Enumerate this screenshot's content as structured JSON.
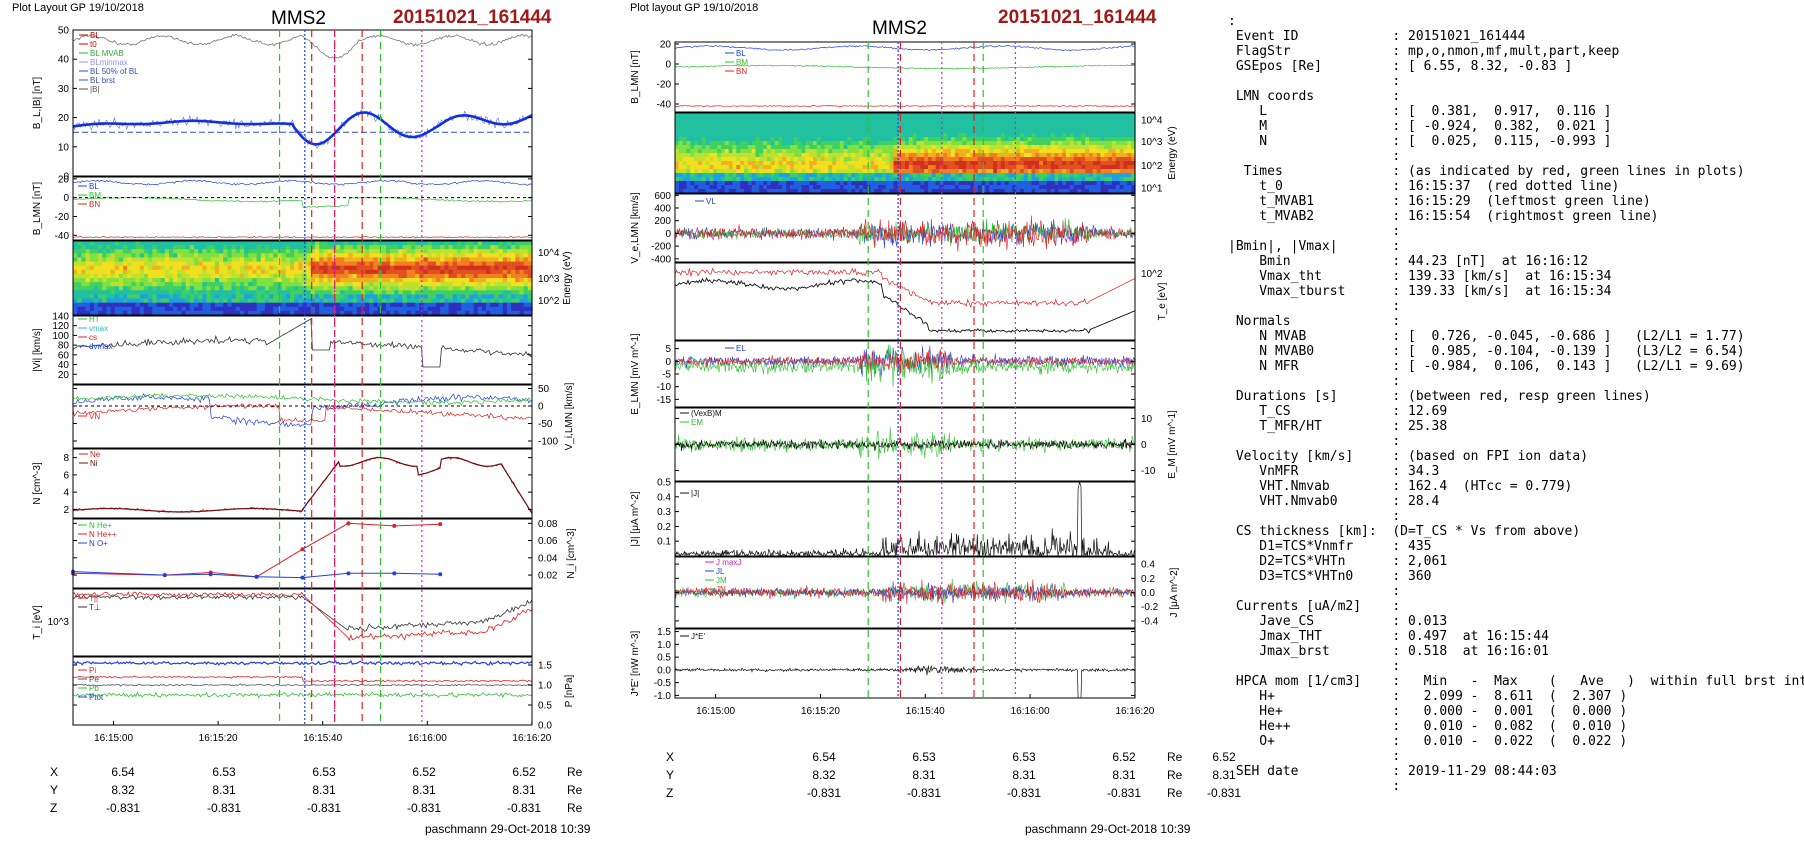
{
  "left": {
    "header": "Plot Layout GP 19/10/2018",
    "spacecraft": "MMS2",
    "event": "20151021_161444",
    "footer": "paschmann 29-Oct-2018 10:39",
    "time_ticks": [
      "16:15:00",
      "16:15:20",
      "16:15:40",
      "16:16:00",
      "16:16:20"
    ]
  },
  "middle": {
    "header": "Plot layout GP 19/10/2018",
    "spacecraft": "MMS2",
    "event": "20151021_161444",
    "footer": "paschmann 29-Oct-2018 10:39",
    "time_ticks": [
      "16:15:00",
      "16:15:20",
      "16:15:40",
      "16:16:00",
      "16:16:20"
    ]
  },
  "position_table": {
    "rows": [
      {
        "label": "X",
        "values": [
          "6.54",
          "6.53",
          "6.53",
          "6.52",
          "6.52"
        ],
        "unit": "Re"
      },
      {
        "label": "Y",
        "values": [
          "8.32",
          "8.31",
          "8.31",
          "8.31",
          "8.31"
        ],
        "unit": "Re"
      },
      {
        "label": "Z",
        "values": [
          "-0.831",
          "-0.831",
          "-0.831",
          "-0.831",
          "-0.831"
        ],
        "unit": "Re"
      }
    ]
  },
  "info_lines": [
    ":",
    " Event ID            : 20151021_161444",
    " FlagStr             : mp,o,nmon,mf,mult,part,keep",
    " GSEpos [Re]         : [ 6.55, 8.32, -0.83 ]",
    "                     :",
    " LMN coords          :",
    "    L                : [  0.381,  0.917,  0.116 ]",
    "    M                : [ -0.924,  0.382,  0.021 ]",
    "    N                : [  0.025,  0.115, -0.993 ]",
    "                     :",
    "  Times              : (as indicated by red, green lines in plots)",
    "    t_0              : 16:15:37  (red dotted line)",
    "    t_MVAB1          : 16:15:29  (leftmost green line)",
    "    t_MVAB2          : 16:15:54  (rightmost green line)",
    "                     :",
    "|Bmin|, |Vmax|       :",
    "    Bmin             : 44.23 [nT]  at 16:16:12",
    "    Vmax_tht         : 139.33 [km/s]  at 16:15:34",
    "    Vmax_tburst      : 139.33 [km/s]  at 16:15:34",
    "                     :",
    " Normals             :",
    "    N MVAB           : [  0.726, -0.045, -0.686 ]   (L2/L1 = 1.77)",
    "    N MVAB0          : [  0.985, -0.104, -0.139 ]   (L3/L2 = 6.54)",
    "    N MFR            : [ -0.984,  0.106,  0.143 ]   (L2/L1 = 9.69)",
    "                     :",
    " Durations [s]       : (between red, resp green lines)",
    "    T_CS             : 12.69",
    "    T_MFR/HT         : 25.38",
    "                     :",
    " Velocity [km/s]     : (based on FPI ion data)",
    "    VnMFR            : 34.3",
    "    VHT.Nmvab        : 162.4  (HTcc = 0.779)",
    "    VHT.Nmvab0       : 28.4",
    "                     :",
    " CS thickness [km]:  (D=T_CS * Vs from above)",
    "    D1=TCS*Vnmfr     : 435",
    "    D2=TCS*VHTn      : 2,061",
    "    D3=TCS*VHTn0     : 360",
    "                     :",
    " Currents [uA/m2]    :",
    "    Jave_CS          : 0.013",
    "    Jmax_THT         : 0.497  at 16:15:44",
    "    Jmax_brst        : 0.518  at 16:16:01",
    "                     :",
    " HPCA mom [1/cm3]    :   Min   -  Max    (   Ave   )  within full brst int",
    "    H+               :   2.099 -  8.611  (  2.307 )",
    "    He+              :   0.000 -  0.001  (  0.000 )",
    "    He++             :   0.010 -  0.082  (  0.010 )",
    "    O+               :   0.010 -  0.022  (  0.022 )",
    "                     :",
    " SEH date            : 2019-11-29 08:44:03",
    "                     :"
  ],
  "chart_data": [
    {
      "type": "line",
      "figure": "left",
      "panels": [
        {
          "id": "B",
          "ylabel": "B_L,|B| [nT]",
          "ylim": [
            0,
            50
          ],
          "ticks": [
            "50",
            "40",
            "30",
            "20",
            "10",
            "0"
          ],
          "legend": [
            "Bl_cs",
            "t0",
            "BL MVAB",
            "BLminmax",
            "BL 50% of BL",
            "BL brst",
            "|B|"
          ]
        },
        {
          "id": "BLMN",
          "ylabel": "B_LMN [nT]",
          "ylim": [
            -45,
            22
          ],
          "ticks": [
            "20",
            "0",
            "-20",
            "-40"
          ],
          "legend": [
            "BL",
            "BM",
            "BN"
          ]
        },
        {
          "id": "spec",
          "ylabel": "Energy (eV)",
          "ticks": [
            "10^4",
            "10^3",
            "10^2"
          ]
        },
        {
          "id": "Vi",
          "ylabel": "|Vi| [km/s]",
          "ylim": [
            0,
            140
          ],
          "ticks": [
            "140",
            "120",
            "100",
            "80",
            "60",
            "40",
            "20"
          ],
          "legend": [
            "HT",
            "vmax",
            "cs",
            "dvmax"
          ]
        },
        {
          "id": "ViLMN",
          "ylabel": "V_i,LMN [km/s]",
          "ylim": [
            -120,
            60
          ],
          "ticks": [
            "50",
            "0",
            "-50",
            "-100"
          ],
          "legend": [
            "VN"
          ]
        },
        {
          "id": "N",
          "ylabel": "N [cm^-3]",
          "ylim": [
            1,
            9
          ],
          "ticks": [
            "8",
            "6",
            "4",
            "2"
          ],
          "legend": [
            "Ne",
            "Ni"
          ]
        },
        {
          "id": "Nhpca",
          "ylabel": "N_i [cm^-3]",
          "ylim": [
            0.005,
            0.085
          ],
          "ticks": [
            "0.08",
            "0.06",
            "0.04",
            "0.02"
          ],
          "legend": [
            "N He+",
            "N He++",
            "N O+"
          ]
        },
        {
          "id": "T",
          "ylabel": "T_i [eV]",
          "ticks": [
            "10^3"
          ],
          "legend": [
            "T||",
            "T⊥"
          ]
        },
        {
          "id": "P",
          "ylabel": "P [nPa]",
          "ylim": [
            0,
            1.7
          ],
          "ticks": [
            "1.5",
            "1.0",
            "0.5",
            "0.0"
          ],
          "legend": [
            "Pi",
            "Pe",
            "Pb",
            "Ptot"
          ]
        }
      ],
      "xlabel": "",
      "markers": {
        "t_MVAB1": "16:15:29",
        "t_0": "16:15:37",
        "t_MVAB2": "16:15:54"
      }
    },
    {
      "type": "line",
      "figure": "middle",
      "panels": [
        {
          "id": "BLMN",
          "ylabel": "B_LMN [nT]",
          "ylim": [
            -48,
            22
          ],
          "ticks": [
            "20",
            "0",
            "-20",
            "-40"
          ],
          "legend": [
            "BL",
            "BM",
            "BN"
          ]
        },
        {
          "id": "espec",
          "ylabel": "Energy (eV)",
          "ticks": [
            "10^4",
            "10^3",
            "10^2",
            "10^1"
          ]
        },
        {
          "id": "Ve",
          "ylabel": "V_e,LMN [km/s]",
          "ylim": [
            -450,
            620
          ],
          "ticks": [
            "600",
            "400",
            "200",
            "0",
            "-200",
            "-400"
          ],
          "legend": [
            "VL"
          ]
        },
        {
          "id": "Te",
          "ylabel": "T_e [eV]",
          "ticks": [
            "10^2"
          ]
        },
        {
          "id": "E",
          "ylabel": "E_LMN [mV m^-1]",
          "ylim": [
            -18,
            8
          ],
          "ticks": [
            "5",
            "0",
            "-5",
            "-10",
            "-15"
          ],
          "legend": [
            "EL"
          ]
        },
        {
          "id": "EM",
          "ylabel": "E_M [mV m^-1]",
          "ylim": [
            -14,
            14
          ],
          "ticks": [
            "10",
            "0",
            "-10"
          ],
          "legend": [
            "(VexB)M",
            "EM"
          ]
        },
        {
          "id": "J",
          "ylabel": "|J| [μA m^-2]",
          "ylim": [
            0,
            0.5
          ],
          "ticks": [
            "0.5",
            "0.4",
            "0.3",
            "0.2",
            "0.1"
          ],
          "legend": [
            "|J|"
          ]
        },
        {
          "id": "JLMN",
          "ylabel": "J [μA m^-2]",
          "ylim": [
            -0.5,
            0.5
          ],
          "ticks": [
            "0.4",
            "0.2",
            "0.0",
            "-0.2",
            "-0.4"
          ],
          "legend": [
            "J maxJ",
            "JL",
            "JM",
            "JN"
          ]
        },
        {
          "id": "JE",
          "ylabel": "J*E' [nW m^-3]",
          "ylim": [
            -1.1,
            1.6
          ],
          "ticks": [
            "1.5",
            "1.0",
            "0.5",
            "0.0",
            "-0.5",
            "-1.0"
          ],
          "legend": [
            "J*E'"
          ]
        }
      ],
      "xlabel": ""
    }
  ]
}
